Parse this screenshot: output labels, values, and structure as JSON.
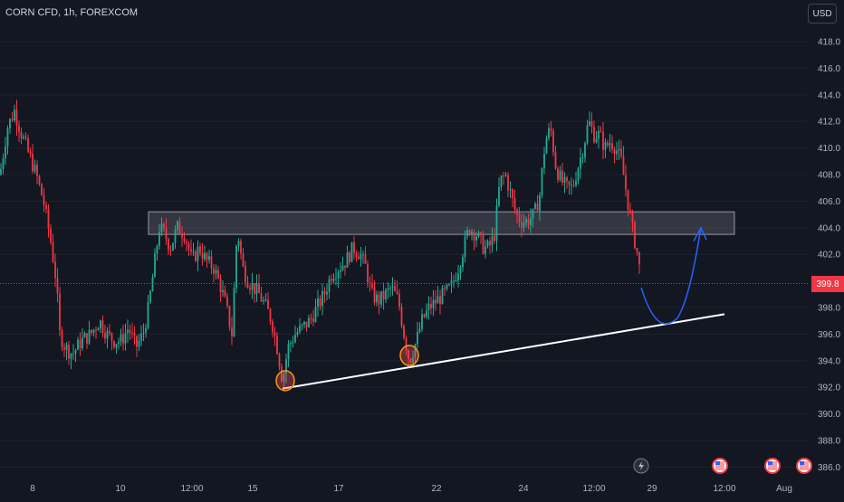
{
  "header": {
    "symbol": "CORN CFD, 1h, FOREXCOM",
    "currency": "USD",
    "last_price": "399.8"
  },
  "colors": {
    "background": "#131722",
    "up": "#22ab94",
    "down": "#f23645",
    "zone_fill": "#5d606b",
    "trendline": "#ffffff",
    "projection": "#2962ff",
    "highlight": "#f7525f"
  },
  "chart_data": {
    "type": "candlestick",
    "symbol": "CORN CFD",
    "interval": "1h",
    "exchange": "FOREXCOM",
    "currency": "USD",
    "last_price": 399.8,
    "ylim": [
      386,
      418
    ],
    "y_ticks": [
      "418.0",
      "416.0",
      "414.0",
      "412.0",
      "410.0",
      "408.0",
      "406.0",
      "404.0",
      "402.0",
      "398.0",
      "396.0",
      "394.0",
      "392.0",
      "390.0",
      "388.0",
      "386.0"
    ],
    "x_ticks": [
      "8",
      "10",
      "12:00",
      "15",
      "17",
      "22",
      "24",
      "12:00",
      "29",
      "12:00",
      "Aug"
    ],
    "price_path": [
      [
        0,
        408
      ],
      [
        8,
        411.5
      ],
      [
        16,
        412.8
      ],
      [
        24,
        411
      ],
      [
        32,
        409.5
      ],
      [
        40,
        408
      ],
      [
        48,
        406
      ],
      [
        56,
        403
      ],
      [
        62,
        400
      ],
      [
        66,
        396
      ],
      [
        72,
        395
      ],
      [
        80,
        394.5
      ],
      [
        90,
        395.5
      ],
      [
        100,
        396
      ],
      [
        110,
        397
      ],
      [
        118,
        396
      ],
      [
        126,
        395.5
      ],
      [
        134,
        395.5
      ],
      [
        142,
        396.5
      ],
      [
        150,
        395
      ],
      [
        158,
        396
      ],
      [
        164,
        398
      ],
      [
        170,
        401
      ],
      [
        176,
        404
      ],
      [
        182,
        403.5
      ],
      [
        188,
        402.5
      ],
      [
        196,
        404
      ],
      [
        204,
        403.5
      ],
      [
        212,
        401.5
      ],
      [
        220,
        402.5
      ],
      [
        228,
        401.5
      ],
      [
        236,
        401
      ],
      [
        244,
        399.5
      ],
      [
        250,
        398
      ],
      [
        256,
        396
      ],
      [
        262,
        404
      ],
      [
        268,
        401
      ],
      [
        274,
        400
      ],
      [
        280,
        399.5
      ],
      [
        286,
        399
      ],
      [
        294,
        398
      ],
      [
        300,
        397
      ],
      [
        306,
        395
      ],
      [
        312,
        392.5
      ],
      [
        318,
        395
      ],
      [
        326,
        396
      ],
      [
        334,
        396.5
      ],
      [
        342,
        397
      ],
      [
        350,
        398
      ],
      [
        358,
        399
      ],
      [
        366,
        400.5
      ],
      [
        374,
        401
      ],
      [
        382,
        401.5
      ],
      [
        390,
        402.5
      ],
      [
        398,
        402
      ],
      [
        404,
        401
      ],
      [
        410,
        399
      ],
      [
        418,
        398.5
      ],
      [
        426,
        399
      ],
      [
        432,
        399.5
      ],
      [
        440,
        398.5
      ],
      [
        446,
        396
      ],
      [
        452,
        394
      ],
      [
        460,
        395.5
      ],
      [
        466,
        397
      ],
      [
        474,
        398
      ],
      [
        482,
        398.5
      ],
      [
        490,
        399
      ],
      [
        498,
        399.5
      ],
      [
        506,
        401
      ],
      [
        512,
        402.5
      ],
      [
        518,
        404
      ],
      [
        526,
        403.5
      ],
      [
        534,
        402.5
      ],
      [
        540,
        402.5
      ],
      [
        546,
        403.5
      ],
      [
        552,
        407.5
      ],
      [
        558,
        408
      ],
      [
        564,
        406.5
      ],
      [
        570,
        405
      ],
      [
        576,
        404.5
      ],
      [
        582,
        404.5
      ],
      [
        590,
        405
      ],
      [
        596,
        406.5
      ],
      [
        602,
        410.5
      ],
      [
        608,
        411.5
      ],
      [
        614,
        408.5
      ],
      [
        620,
        407.5
      ],
      [
        626,
        407
      ],
      [
        632,
        407
      ],
      [
        638,
        408.5
      ],
      [
        644,
        410
      ],
      [
        650,
        412
      ],
      [
        656,
        411
      ],
      [
        662,
        411
      ],
      [
        668,
        410
      ],
      [
        674,
        410.5
      ],
      [
        680,
        410
      ],
      [
        686,
        409
      ],
      [
        692,
        406.5
      ],
      [
        698,
        404
      ],
      [
        704,
        402
      ],
      [
        708,
        400
      ]
    ],
    "annotations": {
      "resistance_zone": {
        "top": 405.2,
        "bottom": 403.5
      },
      "trendline": {
        "from": [
          312,
          391.9
        ],
        "to": [
          800,
          397.5
        ]
      },
      "projection": "curve down to ~397 then up toward ~404",
      "circles": [
        {
          "x": 315,
          "y": 392.5
        },
        {
          "x": 452,
          "y": 394.4
        }
      ]
    }
  },
  "event_icons": [
    "lightning-icon",
    "us-flag-icon",
    "us-flag-icon",
    "us-flag-icon"
  ]
}
